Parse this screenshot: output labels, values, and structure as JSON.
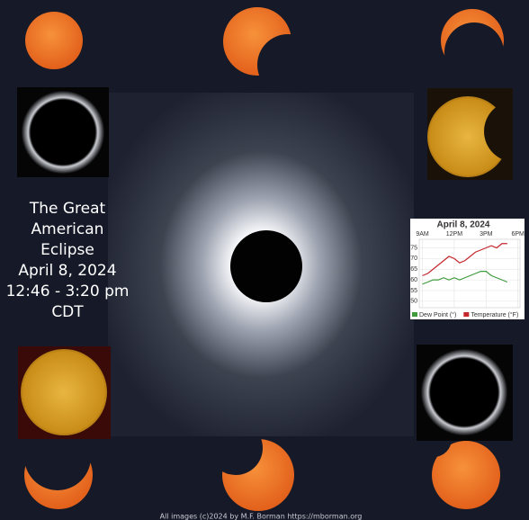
{
  "poster": {
    "title_lines": [
      "The Great",
      "American",
      "Eclipse",
      "April 8, 2024",
      "12:46 - 3:20 pm",
      "CDT"
    ],
    "credit": "All images (c)2024 by M.F. Borman https://mborman.org"
  },
  "chart_data": {
    "type": "line",
    "title": "April 8, 2024",
    "x": [
      9,
      9.5,
      10,
      10.5,
      11,
      11.5,
      12,
      12.5,
      13,
      13.5,
      14,
      14.5,
      15,
      15.5,
      16,
      16.5,
      17
    ],
    "series": [
      {
        "name": "Dew Point (°)",
        "color": "#3f9b3c",
        "values": [
          58,
          59,
          60,
          60,
          61,
          60,
          61,
          60,
          61,
          62,
          63,
          64,
          64,
          62,
          61,
          60,
          59
        ]
      },
      {
        "name": "Temperature (°F)",
        "color": "#c4272d",
        "values": [
          62,
          63,
          65,
          67,
          69,
          71,
          70,
          68,
          69,
          71,
          73,
          74,
          75,
          76,
          75,
          77,
          77
        ]
      }
    ],
    "xlim": [
      8.7,
      18.2
    ],
    "xticks": [
      {
        "value": 9,
        "label": "9AM"
      },
      {
        "value": 12,
        "label": "12PM"
      },
      {
        "value": 15,
        "label": "3PM"
      },
      {
        "value": 18,
        "label": "6PM"
      }
    ],
    "ylim": [
      47,
      79
    ],
    "yticks": [
      50,
      55,
      60,
      65,
      70,
      75
    ],
    "grid": true
  }
}
